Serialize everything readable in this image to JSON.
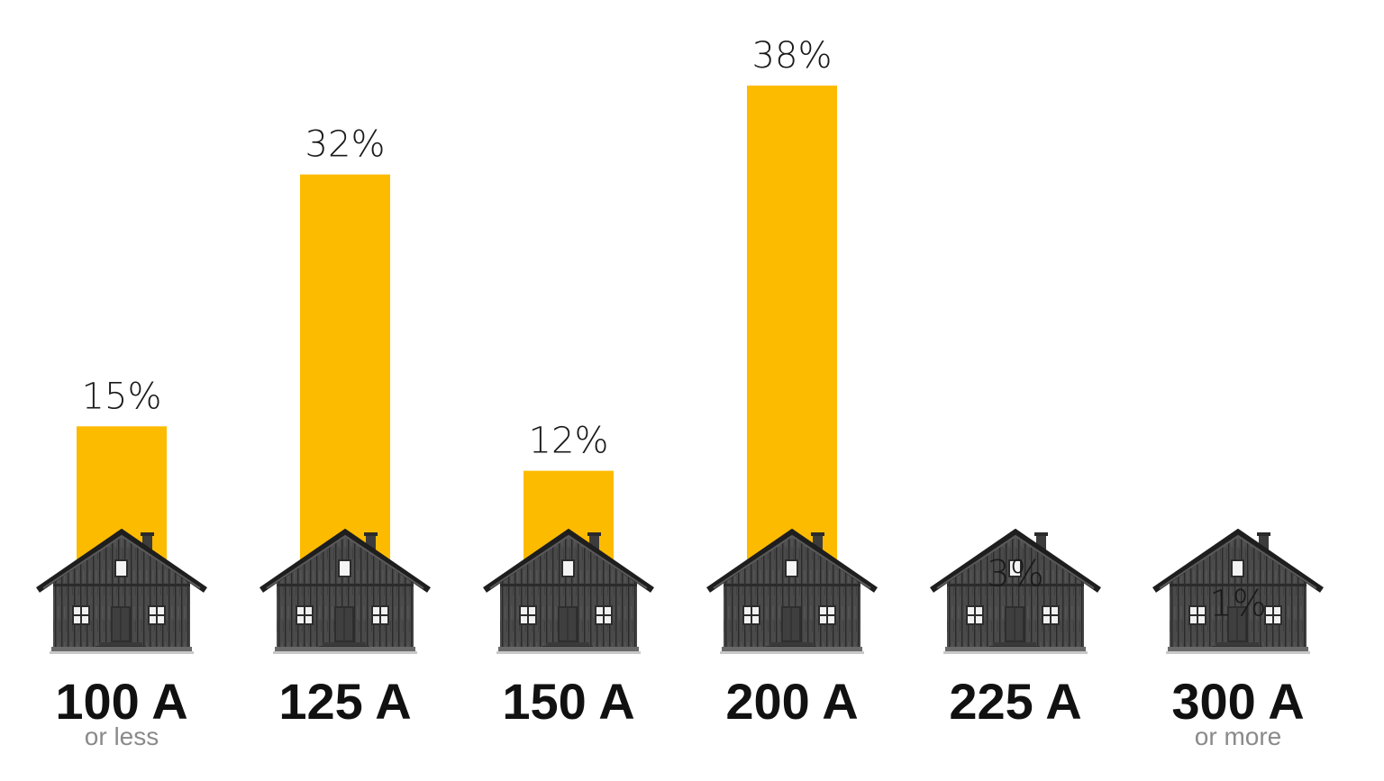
{
  "chart_data": {
    "type": "bar",
    "categories": [
      "100 A",
      "125 A",
      "150 A",
      "200 A",
      "225 A",
      "300 A"
    ],
    "category_sublabels": [
      "or less",
      "",
      "",
      "",
      "",
      "or more"
    ],
    "values": [
      15,
      32,
      12,
      38,
      3,
      1
    ],
    "value_labels": [
      "15%",
      "32%",
      "12%",
      "38%",
      "3%",
      "1%"
    ],
    "ylim": [
      0,
      38
    ],
    "grid": false,
    "bar_color": "#FDBB00",
    "icon": "house-icon"
  }
}
